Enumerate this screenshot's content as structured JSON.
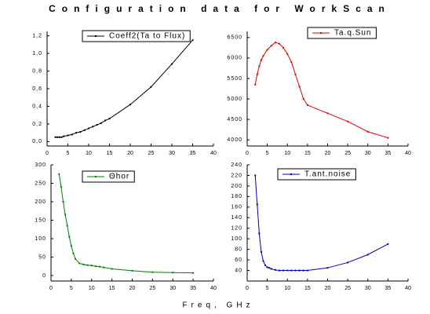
{
  "title": "Configuration data for WorkScan",
  "xlabel": "Freq, GHz",
  "chart_data": [
    {
      "type": "line",
      "legend": "upper center",
      "x": [
        2,
        2.5,
        3,
        3.5,
        4,
        5,
        6,
        7,
        8,
        9,
        10,
        11,
        12,
        13,
        14,
        15,
        20,
        25,
        30,
        35
      ],
      "series": [
        {
          "name": "Coeff2(Ta to Flux)",
          "color": "#000000",
          "values": [
            0.05,
            0.05,
            0.05,
            0.05,
            0.06,
            0.07,
            0.08,
            0.1,
            0.11,
            0.13,
            0.15,
            0.17,
            0.19,
            0.21,
            0.24,
            0.26,
            0.42,
            0.62,
            0.88,
            1.15
          ]
        }
      ],
      "xlim": [
        0,
        40
      ],
      "xticks": [
        0,
        5,
        10,
        15,
        20,
        25,
        30,
        35,
        40
      ],
      "ylim": [
        -0.05,
        1.25
      ],
      "yticks": [
        {
          "value": 0,
          "label": "0,0"
        },
        {
          "value": 0.2,
          "label": "0,2"
        },
        {
          "value": 0.4,
          "label": "0,4"
        },
        {
          "value": 0.6,
          "label": "0,6"
        },
        {
          "value": 0.8,
          "label": "0,8"
        },
        {
          "value": 1.0,
          "label": "1,0"
        },
        {
          "value": 1.2,
          "label": "1,2"
        }
      ]
    },
    {
      "type": "line",
      "legend": "upper right",
      "x": [
        2,
        2.5,
        3,
        3.5,
        4,
        5,
        6,
        7,
        8,
        9,
        10,
        11,
        12,
        13,
        14,
        15,
        20,
        25,
        30,
        35
      ],
      "series": [
        {
          "name": "Ta.q.Sun",
          "color": "#e00000",
          "values": [
            5350,
            5600,
            5800,
            5950,
            6050,
            6200,
            6300,
            6380,
            6350,
            6250,
            6100,
            5900,
            5600,
            5300,
            5000,
            4850,
            4650,
            4450,
            4200,
            4050
          ]
        }
      ],
      "xlim": [
        0,
        40
      ],
      "xticks": [
        0,
        5,
        10,
        15,
        20,
        25,
        30,
        35,
        40
      ],
      "ylim": [
        3850,
        6650
      ],
      "yticks": [
        4000,
        4500,
        5000,
        5500,
        6000,
        6500
      ]
    },
    {
      "type": "line",
      "legend": "upper center",
      "x": [
        2,
        2.5,
        3,
        3.5,
        4,
        4.5,
        5,
        5.5,
        6,
        7,
        8,
        9,
        10,
        11,
        12,
        13,
        15,
        20,
        25,
        30,
        35
      ],
      "series": [
        {
          "name": "Θhor",
          "color": "#008000",
          "values": [
            275,
            240,
            200,
            165,
            135,
            105,
            80,
            60,
            45,
            33,
            30,
            28,
            27,
            25,
            24,
            22,
            18,
            13,
            9,
            8,
            7
          ]
        }
      ],
      "xlim": [
        0,
        40
      ],
      "xticks": [
        0,
        5,
        10,
        15,
        20,
        25,
        30,
        35,
        40
      ],
      "ylim": [
        -15,
        300
      ],
      "yticks": [
        0,
        50,
        100,
        150,
        200,
        250,
        300
      ]
    },
    {
      "type": "line",
      "legend": "upper center",
      "x": [
        2,
        2.5,
        3,
        3.5,
        4,
        4.5,
        5,
        5.5,
        6,
        7,
        8,
        9,
        10,
        11,
        12,
        13,
        14,
        15,
        20,
        25,
        30,
        35
      ],
      "series": [
        {
          "name": "T.ant.noise",
          "color": "#0000c0",
          "values": [
            220,
            165,
            110,
            75,
            58,
            50,
            46,
            45,
            43,
            41,
            40,
            40,
            40,
            40,
            40,
            40,
            40,
            40,
            45,
            55,
            70,
            90
          ]
        }
      ],
      "xlim": [
        0,
        40
      ],
      "xticks": [
        0,
        5,
        10,
        15,
        20,
        25,
        30,
        35,
        40
      ],
      "ylim": [
        20,
        240
      ],
      "yticks": [
        40,
        60,
        80,
        100,
        120,
        140,
        160,
        180,
        200,
        220,
        240
      ]
    }
  ]
}
